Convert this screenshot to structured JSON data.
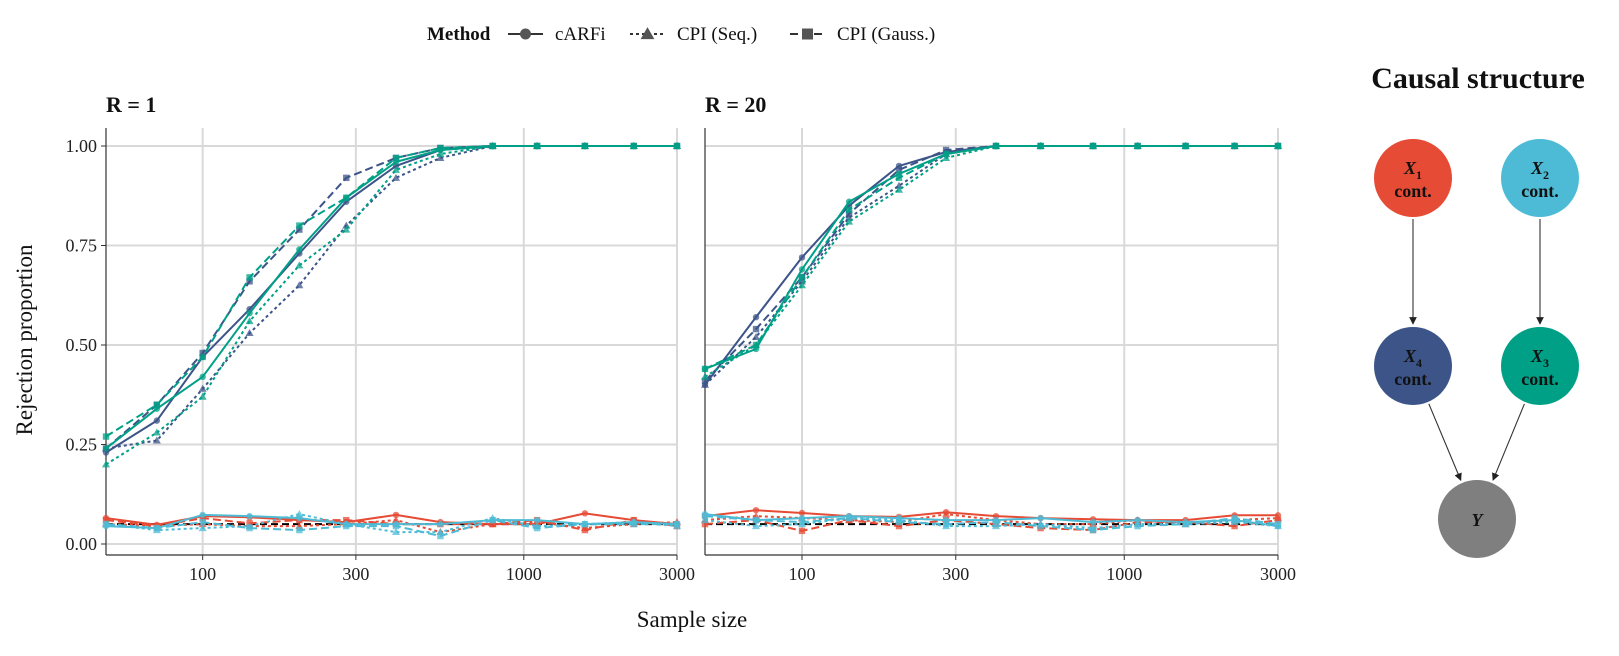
{
  "legend": {
    "title": "Method",
    "items": [
      {
        "label": "cARFi",
        "dash": "solid",
        "shape": "circle"
      },
      {
        "label": "CPI (Seq.)",
        "dash": "dotted",
        "shape": "triangle"
      },
      {
        "label": "CPI (Gauss.)",
        "dash": "dashed",
        "shape": "square"
      }
    ]
  },
  "colors": {
    "X1": "#E64B35",
    "X2": "#4DBBD5",
    "X3": "#00A087",
    "X4": "#3C5488",
    "Y": "#7F7F7F",
    "grid": "#D9D9D9",
    "reference": "#000000"
  },
  "dag": {
    "title": "Causal structure",
    "nodes": [
      {
        "id": "X1",
        "var": "X",
        "sub": "1",
        "type": "cont."
      },
      {
        "id": "X2",
        "var": "X",
        "sub": "2",
        "type": "cont."
      },
      {
        "id": "X4",
        "var": "X",
        "sub": "4",
        "type": "cont."
      },
      {
        "id": "X3",
        "var": "X",
        "sub": "3",
        "type": "cont."
      },
      {
        "id": "Y",
        "var": "Y",
        "sub": "",
        "type": ""
      }
    ],
    "edges": [
      [
        "X1",
        "X4"
      ],
      [
        "X2",
        "X3"
      ],
      [
        "X4",
        "Y"
      ],
      [
        "X3",
        "Y"
      ]
    ]
  },
  "chart_data": {
    "type": "line",
    "xlabel": "Sample size",
    "ylabel": "Rejection proportion",
    "x_scale": "log",
    "xlim": [
      50,
      3000
    ],
    "ylim": [
      0,
      1
    ],
    "x_ticks": [
      100,
      300,
      1000,
      3000
    ],
    "y_ticks": [
      0,
      0.25,
      0.5,
      0.75,
      1
    ],
    "y_tick_labels": [
      "0.00",
      "0.25",
      "0.50",
      "0.75",
      "1.00"
    ],
    "reference_line": 0.05,
    "x": [
      50,
      72,
      100,
      140,
      200,
      280,
      400,
      550,
      800,
      1100,
      1550,
      2200,
      3000
    ],
    "panels": [
      {
        "title": "R = 1",
        "series": [
          {
            "variable": "X4",
            "method": "cARFi",
            "values": [
              0.23,
              0.31,
              0.47,
              0.59,
              0.73,
              0.86,
              0.95,
              0.99,
              1,
              1,
              1,
              1,
              1
            ]
          },
          {
            "variable": "X4",
            "method": "CPI (Seq.)",
            "values": [
              0.24,
              0.26,
              0.39,
              0.53,
              0.65,
              0.8,
              0.92,
              0.97,
              1,
              1,
              1,
              1,
              1
            ]
          },
          {
            "variable": "X4",
            "method": "CPI (Gauss.)",
            "values": [
              0.24,
              0.35,
              0.48,
              0.66,
              0.79,
              0.92,
              0.97,
              0.995,
              1,
              1,
              1,
              1,
              1
            ]
          },
          {
            "variable": "X3",
            "method": "cARFi",
            "values": [
              0.24,
              0.34,
              0.42,
              0.58,
              0.74,
              0.87,
              0.96,
              0.99,
              1,
              1,
              1,
              1,
              1
            ]
          },
          {
            "variable": "X3",
            "method": "CPI (Seq.)",
            "values": [
              0.2,
              0.28,
              0.37,
              0.56,
              0.7,
              0.79,
              0.94,
              0.98,
              1,
              1,
              1,
              1,
              1
            ]
          },
          {
            "variable": "X3",
            "method": "CPI (Gauss.)",
            "values": [
              0.27,
              0.35,
              0.47,
              0.67,
              0.8,
              0.87,
              0.97,
              0.995,
              1,
              1,
              1,
              1,
              1
            ]
          },
          {
            "variable": "X1",
            "method": "cARFi",
            "values": [
              0.065,
              0.048,
              0.07,
              0.067,
              0.06,
              0.055,
              0.073,
              0.055,
              0.05,
              0.05,
              0.077,
              0.06,
              0.05
            ]
          },
          {
            "variable": "X1",
            "method": "CPI (Seq.)",
            "values": [
              0.05,
              0.045,
              0.05,
              0.045,
              0.045,
              0.05,
              0.06,
              0.03,
              0.05,
              0.055,
              0.04,
              0.05,
              0.055
            ]
          },
          {
            "variable": "X1",
            "method": "CPI (Gauss.)",
            "values": [
              0.06,
              0.045,
              0.065,
              0.052,
              0.06,
              0.06,
              0.05,
              0.05,
              0.05,
              0.06,
              0.035,
              0.06,
              0.045
            ]
          },
          {
            "variable": "X2",
            "method": "cARFi",
            "values": [
              0.045,
              0.04,
              0.073,
              0.07,
              0.065,
              0.05,
              0.05,
              0.05,
              0.06,
              0.06,
              0.05,
              0.055,
              0.05
            ]
          },
          {
            "variable": "X2",
            "method": "CPI (Seq.)",
            "values": [
              0.05,
              0.035,
              0.04,
              0.045,
              0.075,
              0.05,
              0.03,
              0.03,
              0.065,
              0.045,
              0.05,
              0.055,
              0.045
            ]
          },
          {
            "variable": "X2",
            "method": "CPI (Gauss.)",
            "values": [
              0.05,
              0.04,
              0.055,
              0.04,
              0.035,
              0.045,
              0.045,
              0.02,
              0.06,
              0.04,
              0.05,
              0.05,
              0.05
            ]
          }
        ]
      },
      {
        "title": "R = 20",
        "series": [
          {
            "variable": "X4",
            "method": "cARFi",
            "values": [
              0.4,
              0.57,
              0.72,
              0.85,
              0.95,
              0.985,
              1,
              1,
              1,
              1,
              1,
              1,
              1
            ]
          },
          {
            "variable": "X4",
            "method": "CPI (Seq.)",
            "values": [
              0.4,
              0.52,
              0.66,
              0.82,
              0.9,
              0.98,
              1,
              1,
              1,
              1,
              1,
              1,
              1
            ]
          },
          {
            "variable": "X4",
            "method": "CPI (Gauss.)",
            "values": [
              0.41,
              0.54,
              0.67,
              0.83,
              0.94,
              0.99,
              1,
              1,
              1,
              1,
              1,
              1,
              1
            ]
          },
          {
            "variable": "X3",
            "method": "cARFi",
            "values": [
              0.44,
              0.49,
              0.69,
              0.86,
              0.93,
              0.98,
              1,
              1,
              1,
              1,
              1,
              1,
              1
            ]
          },
          {
            "variable": "X3",
            "method": "CPI (Seq.)",
            "values": [
              0.42,
              0.5,
              0.65,
              0.81,
              0.89,
              0.97,
              1,
              1,
              1,
              1,
              1,
              1,
              1
            ]
          },
          {
            "variable": "X3",
            "method": "CPI (Gauss.)",
            "values": [
              0.44,
              0.5,
              0.67,
              0.84,
              0.92,
              0.98,
              1,
              1,
              1,
              1,
              1,
              1,
              1
            ]
          },
          {
            "variable": "X1",
            "method": "cARFi",
            "values": [
              0.07,
              0.085,
              0.078,
              0.07,
              0.068,
              0.08,
              0.07,
              0.065,
              0.062,
              0.06,
              0.06,
              0.072,
              0.072
            ]
          },
          {
            "variable": "X1",
            "method": "CPI (Seq.)",
            "values": [
              0.06,
              0.07,
              0.065,
              0.06,
              0.055,
              0.075,
              0.06,
              0.05,
              0.05,
              0.06,
              0.05,
              0.06,
              0.065
            ]
          },
          {
            "variable": "X1",
            "method": "CPI (Gauss.)",
            "values": [
              0.05,
              0.06,
              0.033,
              0.06,
              0.045,
              0.06,
              0.05,
              0.04,
              0.035,
              0.055,
              0.055,
              0.045,
              0.06
            ]
          },
          {
            "variable": "X2",
            "method": "cARFi",
            "values": [
              0.075,
              0.06,
              0.065,
              0.07,
              0.065,
              0.06,
              0.06,
              0.065,
              0.055,
              0.06,
              0.055,
              0.06,
              0.045
            ]
          },
          {
            "variable": "X2",
            "method": "CPI (Seq.)",
            "values": [
              0.06,
              0.045,
              0.05,
              0.065,
              0.06,
              0.045,
              0.045,
              0.05,
              0.04,
              0.05,
              0.05,
              0.055,
              0.045
            ]
          },
          {
            "variable": "X2",
            "method": "CPI (Gauss.)",
            "values": [
              0.07,
              0.06,
              0.055,
              0.065,
              0.055,
              0.05,
              0.055,
              0.045,
              0.035,
              0.045,
              0.05,
              0.065,
              0.05
            ]
          }
        ]
      }
    ]
  }
}
